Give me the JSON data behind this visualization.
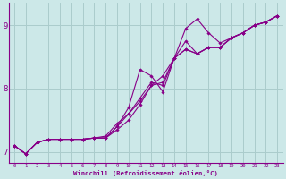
{
  "xlabel": "Windchill (Refroidissement éolien,°C)",
  "bg_color": "#cce8e8",
  "line_color": "#880088",
  "grid_color": "#aacccc",
  "spine_color": "#880088",
  "xlim": [
    -0.5,
    23.5
  ],
  "ylim": [
    6.82,
    9.35
  ],
  "yticks": [
    7,
    8,
    9
  ],
  "xticks": [
    0,
    1,
    2,
    3,
    4,
    5,
    6,
    7,
    8,
    9,
    10,
    11,
    12,
    13,
    14,
    15,
    16,
    17,
    18,
    19,
    20,
    21,
    22,
    23
  ],
  "lines": [
    {
      "x": [
        0,
        1,
        2,
        3,
        4,
        5,
        6,
        7,
        8,
        9,
        10,
        11,
        12,
        13,
        14,
        15,
        16,
        17,
        18,
        19,
        20,
        21,
        22,
        23
      ],
      "y": [
        7.1,
        6.97,
        7.15,
        7.2,
        7.2,
        7.2,
        7.2,
        7.22,
        7.22,
        7.35,
        7.5,
        7.75,
        8.05,
        8.2,
        8.48,
        8.62,
        8.55,
        8.65,
        8.65,
        8.8,
        8.88,
        9.0,
        9.05,
        9.15
      ]
    },
    {
      "x": [
        0,
        1,
        2,
        3,
        4,
        5,
        6,
        7,
        8,
        9,
        10,
        11,
        12,
        13,
        14,
        15,
        16,
        17,
        18,
        19,
        20,
        21,
        22,
        23
      ],
      "y": [
        7.1,
        6.97,
        7.15,
        7.2,
        7.2,
        7.2,
        7.2,
        7.22,
        7.22,
        7.4,
        7.6,
        7.85,
        8.1,
        8.05,
        8.48,
        8.75,
        8.55,
        8.65,
        8.65,
        8.8,
        8.88,
        9.0,
        9.05,
        9.15
      ]
    },
    {
      "x": [
        0,
        1,
        2,
        3,
        4,
        5,
        6,
        7,
        8,
        9,
        10,
        11,
        12,
        13,
        14,
        15,
        16,
        17,
        18,
        19,
        20,
        21,
        22,
        23
      ],
      "y": [
        7.1,
        6.97,
        7.15,
        7.2,
        7.2,
        7.2,
        7.2,
        7.22,
        7.22,
        7.4,
        7.7,
        8.3,
        8.2,
        7.95,
        8.48,
        8.95,
        9.1,
        8.88,
        8.72,
        8.8,
        8.88,
        9.0,
        9.05,
        9.15
      ]
    },
    {
      "x": [
        0,
        1,
        2,
        3,
        4,
        5,
        6,
        7,
        8,
        9,
        10,
        11,
        12,
        13,
        14,
        15,
        16,
        17,
        18,
        19,
        20,
        21,
        22,
        23
      ],
      "y": [
        7.1,
        6.97,
        7.15,
        7.2,
        7.2,
        7.2,
        7.2,
        7.22,
        7.25,
        7.45,
        7.6,
        7.8,
        8.05,
        8.1,
        8.48,
        8.62,
        8.55,
        8.65,
        8.65,
        8.8,
        8.88,
        9.0,
        9.05,
        9.15
      ]
    }
  ],
  "marker": "D",
  "markersize": 1.8,
  "linewidth": 0.8
}
